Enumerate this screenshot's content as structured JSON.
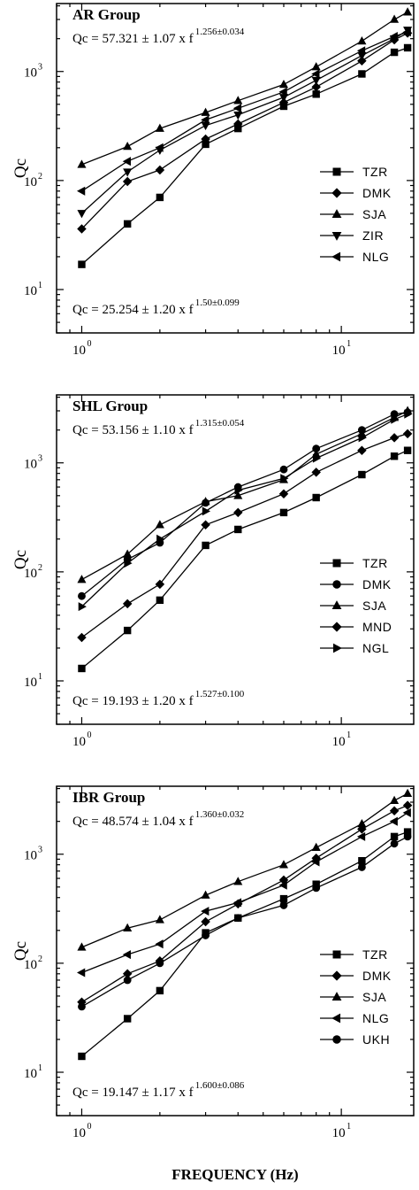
{
  "chart_data": [
    {
      "type": "line",
      "title": "AR Group",
      "ylabel": "Qc",
      "xlabel": "",
      "xscale": "log",
      "yscale": "log",
      "xlim": [
        0.8,
        19
      ],
      "ylim": [
        4,
        4200
      ],
      "x_ticks": [
        {
          "base": "10",
          "exp": "0",
          "value": 1
        },
        {
          "base": "10",
          "exp": "1",
          "value": 10
        }
      ],
      "y_ticks": [
        {
          "base": "10",
          "exp": "1",
          "value": 10
        },
        {
          "base": "10",
          "exp": "2",
          "value": 100
        },
        {
          "base": "10",
          "exp": "3",
          "value": 1000
        }
      ],
      "equation_top": {
        "text": "Qc = 57.321 ± 1.07 x f",
        "exponent": "1.256±0.034"
      },
      "equation_bottom": {
        "text": "Qc = 25.254 ± 1.20 x f",
        "exponent": "1.50±0.099"
      },
      "legend_position": "right",
      "x": [
        1,
        1.5,
        2,
        3,
        4,
        6,
        8,
        12,
        16,
        18
      ],
      "series": [
        {
          "name": "TZR",
          "marker": "square",
          "values": [
            17,
            40,
            70,
            215,
            300,
            480,
            620,
            950,
            1500,
            1650
          ]
        },
        {
          "name": "DMK",
          "marker": "diamond",
          "values": [
            36,
            98,
            125,
            240,
            330,
            520,
            720,
            1250,
            1950,
            2250
          ]
        },
        {
          "name": "SJA",
          "marker": "triangle-up",
          "values": [
            140,
            205,
            300,
            420,
            540,
            760,
            1100,
            1900,
            3000,
            3500
          ]
        },
        {
          "name": "ZIR",
          "marker": "triangle-down",
          "values": [
            50,
            120,
            190,
            320,
            400,
            580,
            830,
            1400,
            2000,
            2400
          ]
        },
        {
          "name": "NLG",
          "marker": "triangle-left",
          "values": [
            80,
            150,
            200,
            360,
            460,
            650,
            950,
            1550,
            2100,
            2300
          ]
        }
      ]
    },
    {
      "type": "line",
      "title": "SHL Group",
      "ylabel": "Qc",
      "xlabel": "",
      "xscale": "log",
      "yscale": "log",
      "xlim": [
        0.8,
        19
      ],
      "ylim": [
        4,
        4200
      ],
      "x_ticks": [
        {
          "base": "10",
          "exp": "0",
          "value": 1
        },
        {
          "base": "10",
          "exp": "1",
          "value": 10
        }
      ],
      "y_ticks": [
        {
          "base": "10",
          "exp": "1",
          "value": 10
        },
        {
          "base": "10",
          "exp": "2",
          "value": 100
        },
        {
          "base": "10",
          "exp": "3",
          "value": 1000
        }
      ],
      "equation_top": {
        "text": "Qc = 53.156 ± 1.10 x f",
        "exponent": "1.315±0.054"
      },
      "equation_bottom": {
        "text": "Qc = 19.193 ± 1.20 x f",
        "exponent": "1.527±0.100"
      },
      "legend_position": "right",
      "x": [
        1,
        1.5,
        2,
        3,
        4,
        6,
        8,
        12,
        16,
        18
      ],
      "series": [
        {
          "name": "TZR",
          "marker": "square",
          "values": [
            13,
            29,
            55,
            175,
            245,
            350,
            480,
            780,
            1150,
            1300
          ]
        },
        {
          "name": "DMK",
          "marker": "circle",
          "values": [
            60,
            130,
            185,
            430,
            600,
            870,
            1350,
            2000,
            2800,
            2900
          ]
        },
        {
          "name": "SJA",
          "marker": "triangle-up",
          "values": [
            85,
            145,
            270,
            440,
            500,
            700,
            1200,
            1850,
            2600,
            3000
          ]
        },
        {
          "name": "MND",
          "marker": "diamond",
          "values": [
            25,
            51,
            77,
            270,
            350,
            520,
            820,
            1300,
            1700,
            1850
          ]
        },
        {
          "name": "NGL",
          "marker": "triangle-right",
          "values": [
            48,
            120,
            200,
            360,
            560,
            720,
            1100,
            1700,
            2500,
            2800
          ]
        }
      ]
    },
    {
      "type": "line",
      "title": "IBR Group",
      "ylabel": "Qc",
      "xlabel": "FREQUENCY (Hz)",
      "xscale": "log",
      "yscale": "log",
      "xlim": [
        0.8,
        19
      ],
      "ylim": [
        4,
        4200
      ],
      "x_ticks": [
        {
          "base": "10",
          "exp": "0",
          "value": 1
        },
        {
          "base": "10",
          "exp": "1",
          "value": 10
        }
      ],
      "y_ticks": [
        {
          "base": "10",
          "exp": "1",
          "value": 10
        },
        {
          "base": "10",
          "exp": "2",
          "value": 100
        },
        {
          "base": "10",
          "exp": "3",
          "value": 1000
        }
      ],
      "equation_top": {
        "text": "Qc = 48.574 ± 1.04 x f",
        "exponent": "1.360±0.032"
      },
      "equation_bottom": {
        "text": "Qc = 19.147 ± 1.17 x f",
        "exponent": "1.600±0.086"
      },
      "legend_position": "right",
      "x": [
        1,
        1.5,
        2,
        3,
        4,
        6,
        8,
        12,
        16,
        18
      ],
      "series": [
        {
          "name": "TZR",
          "marker": "square",
          "values": [
            14,
            31,
            56,
            190,
            260,
            390,
            530,
            870,
            1450,
            1600
          ]
        },
        {
          "name": "DMK",
          "marker": "diamond",
          "values": [
            44,
            80,
            105,
            240,
            350,
            580,
            920,
            1700,
            2500,
            2800
          ]
        },
        {
          "name": "SJA",
          "marker": "triangle-up",
          "values": [
            140,
            210,
            250,
            420,
            560,
            800,
            1150,
            1900,
            3100,
            3600
          ]
        },
        {
          "name": "NLG",
          "marker": "triangle-left",
          "values": [
            82,
            120,
            150,
            300,
            360,
            520,
            850,
            1450,
            2000,
            2400
          ]
        },
        {
          "name": "UKH",
          "marker": "circle",
          "values": [
            40,
            70,
            100,
            180,
            260,
            340,
            490,
            760,
            1250,
            1450
          ]
        }
      ]
    }
  ]
}
